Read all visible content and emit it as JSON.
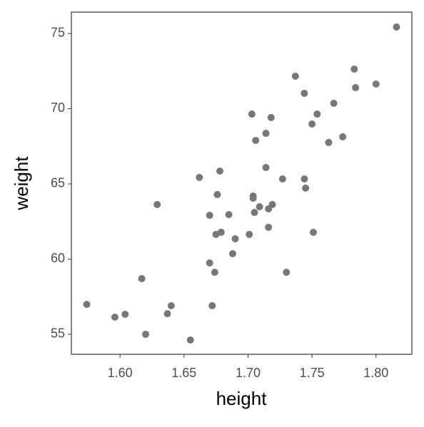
{
  "chart_data": {
    "type": "scatter",
    "xlabel": "height",
    "ylabel": "weight",
    "color": "#777777",
    "x": [
      1.574,
      1.596,
      1.604,
      1.617,
      1.62,
      1.629,
      1.637,
      1.64,
      1.655,
      1.662,
      1.67,
      1.67,
      1.672,
      1.674,
      1.675,
      1.676,
      1.678,
      1.679,
      1.685,
      1.688,
      1.69,
      1.701,
      1.703,
      1.704,
      1.704,
      1.705,
      1.706,
      1.709,
      1.714,
      1.714,
      1.716,
      1.716,
      1.718,
      1.719,
      1.727,
      1.73,
      1.737,
      1.744,
      1.744,
      1.745,
      1.75,
      1.751,
      1.754,
      1.763,
      1.767,
      1.774,
      1.783,
      1.784,
      1.8,
      1.816
    ],
    "values": [
      56.99,
      56.14,
      56.33,
      58.7,
      55.0,
      63.63,
      56.37,
      56.9,
      54.62,
      65.43,
      59.74,
      62.91,
      56.9,
      59.12,
      61.64,
      64.29,
      65.85,
      61.78,
      62.96,
      60.36,
      61.35,
      61.64,
      69.64,
      64.19,
      64.05,
      63.1,
      67.89,
      63.48,
      68.36,
      66.09,
      63.34,
      62.11,
      69.41,
      63.63,
      65.33,
      59.12,
      72.16,
      71.02,
      65.33,
      64.72,
      68.98,
      61.78,
      69.64,
      67.75,
      70.36,
      68.13,
      72.63,
      71.4,
      71.64,
      75.43
    ],
    "xlim": [
      1.562,
      1.828
    ],
    "ylim": [
      53.67,
      76.42
    ],
    "xticks": [
      {
        "value": 1.6,
        "label": "1.60"
      },
      {
        "value": 1.65,
        "label": "1.65"
      },
      {
        "value": 1.7,
        "label": "1.70"
      },
      {
        "value": 1.75,
        "label": "1.75"
      },
      {
        "value": 1.8,
        "label": "1.80"
      }
    ],
    "yticks": [
      55,
      60,
      65,
      70,
      75
    ]
  }
}
